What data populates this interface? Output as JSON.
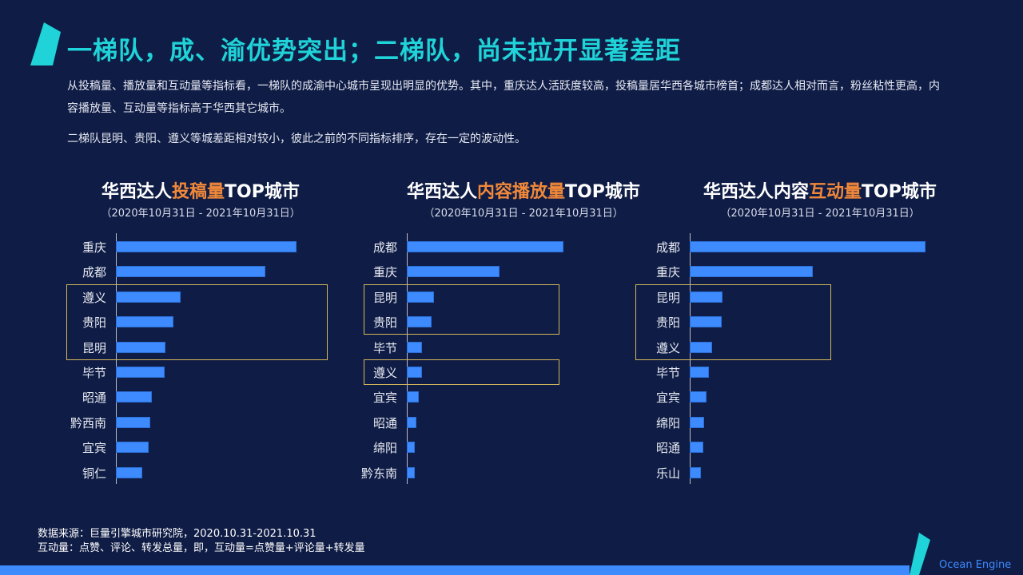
{
  "header": {
    "title": "一梯队，成、渝优势突出；二梯队，尚未拉开显著差距"
  },
  "intro": {
    "paragraph1": "从投稿量、播放量和互动量等指标看，一梯队的成渝中心城市呈现出明显的优势。其中，重庆达人活跃度较高，投稿量居华西各城市榜首；成都达人相对而言，粉丝粘性更高，内容播放量、互动量等指标高于华西其它城市。",
    "paragraph2": "二梯队昆明、贵阳、遵义等城差距相对较小，彼此之前的不同指标排序，存在一定的波动性。"
  },
  "colors": {
    "background": "#0f1c45",
    "title": "#1fd3d8",
    "highlight_text": "#f0883a",
    "bar": "#3d8bff",
    "highlight_box": "#d4b85a",
    "brand": "#3d8bff"
  },
  "charts": [
    {
      "title_prefix": "华西达人",
      "title_highlight": "投稿量",
      "title_suffix": "TOP城市",
      "subtitle": "（2020年10月31日 - 2021年10月31日）"
    },
    {
      "title_prefix": "华西达人",
      "title_highlight": "内容播放量",
      "title_suffix": "TOP城市",
      "subtitle": "（2020年10月31日 - 2021年10月31日）"
    },
    {
      "title_prefix": "华西达人内容",
      "title_highlight": "互动量",
      "title_suffix": "TOP城市",
      "subtitle": "（2020年10月31日 - 2021年10月31日）"
    }
  ],
  "chart_data": [
    {
      "type": "bar",
      "orientation": "horizontal",
      "title": "华西达人投稿量TOP城市",
      "subtitle": "（2020年10月31日 - 2021年10月31日）",
      "categories": [
        "重庆",
        "成都",
        "遵义",
        "贵阳",
        "昆明",
        "毕节",
        "昭通",
        "黔西南",
        "宜宾",
        "铜仁"
      ],
      "values": [
        226,
        187,
        81,
        72,
        62,
        61,
        45,
        43,
        41,
        33
      ],
      "value_units": "relative bar length (no axis scale shown)",
      "highlighted": [
        "遵义",
        "贵阳",
        "昆明"
      ],
      "grid": false,
      "legend": null
    },
    {
      "type": "bar",
      "orientation": "horizontal",
      "title": "华西达人内容播放量TOP城市",
      "subtitle": "（2020年10月31日 - 2021年10月31日）",
      "categories": [
        "成都",
        "重庆",
        "昆明",
        "贵阳",
        "毕节",
        "遵义",
        "宜宾",
        "昭通",
        "绵阳",
        "黔东南"
      ],
      "values": [
        196,
        116,
        34,
        31,
        19,
        19,
        15,
        12,
        10,
        10
      ],
      "value_units": "relative bar length (no axis scale shown)",
      "highlighted": [
        "昆明",
        "贵阳",
        "遵义"
      ],
      "grid": false,
      "legend": null
    },
    {
      "type": "bar",
      "orientation": "horizontal",
      "title": "华西达人内容互动量TOP城市",
      "subtitle": "（2020年10月31日 - 2021年10月31日）",
      "categories": [
        "成都",
        "重庆",
        "昆明",
        "贵阳",
        "遵义",
        "毕节",
        "宜宾",
        "绵阳",
        "昭通",
        "乐山"
      ],
      "values": [
        295,
        154,
        41,
        40,
        28,
        24,
        21,
        18,
        17,
        14
      ],
      "value_units": "relative bar length (no axis scale shown)",
      "highlighted": [
        "昆明",
        "贵阳",
        "遵义"
      ],
      "grid": false,
      "legend": null
    }
  ],
  "footer": {
    "source": "数据来源：巨量引擎城市研究院，2020.10.31-2021.10.31",
    "definition": "互动量：点赞、评论、转发总量，即，互动量=点赞量+评论量+转发量",
    "brand": "Ocean Engine"
  }
}
